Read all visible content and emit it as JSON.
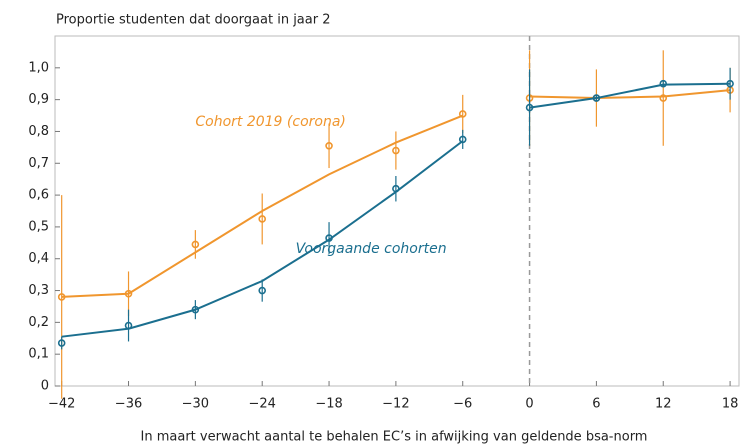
{
  "chart_data": {
    "type": "line",
    "title": "Proportie studenten dat doorgaat in jaar 2",
    "x_label": "In maart verwacht aantal te behalen EC’s in afwijking van geldende bsa-norm",
    "x": [
      -42,
      -36,
      -30,
      -24,
      -18,
      -12,
      -6,
      0,
      6,
      12,
      18
    ],
    "series": [
      {
        "name": "Cohort 2019 (corona)",
        "color": "#f0962e",
        "values": [
          0.28,
          0.29,
          0.445,
          0.525,
          0.755,
          0.74,
          0.855,
          0.905,
          0.905,
          0.905,
          0.93
        ],
        "errors": [
          0.32,
          0.07,
          0.045,
          0.08,
          0.07,
          0.06,
          0.06,
          0.15,
          0.09,
          0.15,
          0.07
        ],
        "fit": [
          0.28,
          0.29,
          0.42,
          0.55,
          0.665,
          0.765,
          0.85,
          0.91,
          0.905,
          0.91,
          0.93
        ]
      },
      {
        "name": "Voorgaande cohorten",
        "color": "#1b6f8f",
        "values": [
          0.135,
          0.19,
          0.24,
          0.3,
          0.465,
          0.62,
          0.775,
          0.875,
          0.905,
          0.95,
          0.95
        ],
        "errors": [
          0.02,
          0.05,
          0.03,
          0.035,
          0.05,
          0.04,
          0.03,
          0.12,
          0.01,
          0.01,
          0.05
        ],
        "fit": [
          0.155,
          0.18,
          0.24,
          0.33,
          0.46,
          0.61,
          0.77,
          0.875,
          0.905,
          0.947,
          0.95
        ]
      }
    ],
    "divider_x": 0,
    "xlim": [
      -42.6,
      18.8
    ],
    "xticks": [
      {
        "value": -42,
        "label": "−42"
      },
      {
        "value": -36,
        "label": "−36"
      },
      {
        "value": -30,
        "label": "−30"
      },
      {
        "value": -24,
        "label": "−24"
      },
      {
        "value": -18,
        "label": "−18"
      },
      {
        "value": -12,
        "label": "−12"
      },
      {
        "value": -6,
        "label": "−6"
      },
      0,
      6,
      12,
      18
    ],
    "ylim": [
      0,
      1.1
    ],
    "yticks": [
      0,
      {
        "value": 0.1,
        "label": "0,1"
      },
      {
        "value": 0.2,
        "label": "0,2"
      },
      {
        "value": 0.3,
        "label": "0,3"
      },
      {
        "value": 0.4,
        "label": "0,4"
      },
      {
        "value": 0.5,
        "label": "0,5"
      },
      {
        "value": 0.6,
        "label": "0,6"
      },
      {
        "value": 0.7,
        "label": "0,7"
      },
      {
        "value": 0.8,
        "label": "0,8"
      },
      {
        "value": 0.9,
        "label": "0,9"
      },
      {
        "value": 1.0,
        "label": "1,0"
      }
    ],
    "grid": false
  }
}
